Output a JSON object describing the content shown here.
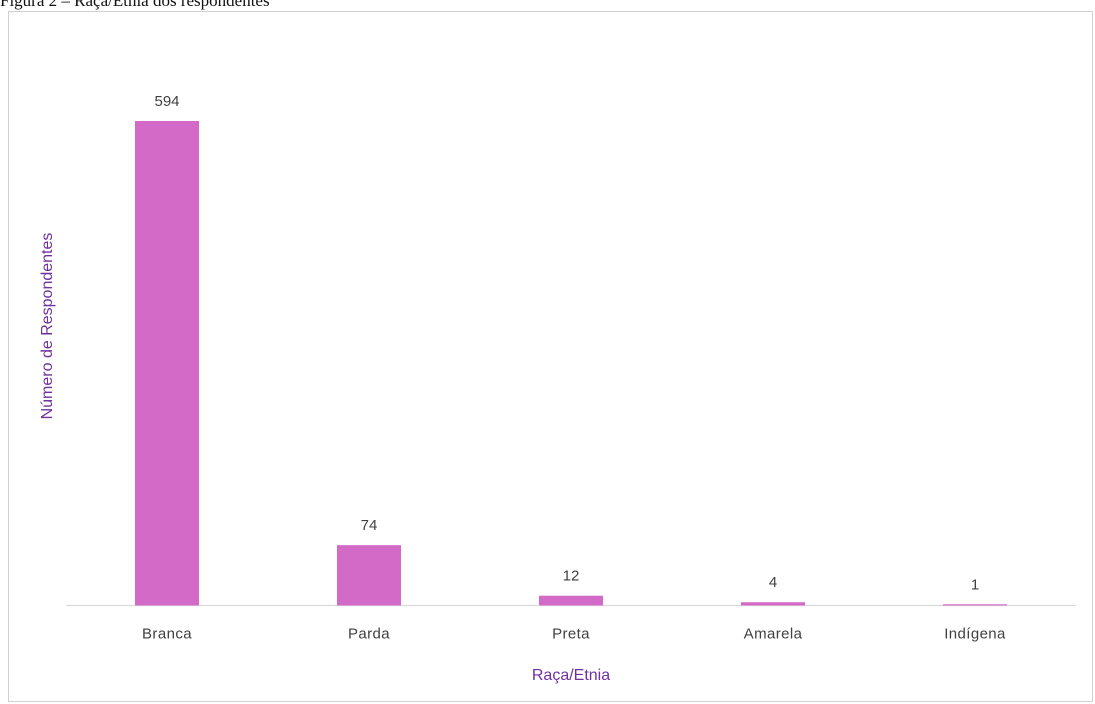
{
  "caption": "Figura 2 – Raça/Etnia dos respondentes",
  "chart_data": {
    "type": "bar",
    "categories": [
      "Branca",
      "Parda",
      "Preta",
      "Amarela",
      "Indígena"
    ],
    "values": [
      594,
      74,
      12,
      4,
      1
    ],
    "data_labels": [
      "594",
      "74",
      "12",
      "4",
      "1"
    ],
    "xlabel": "Raça/Etnia",
    "ylabel": "Número de Respondentes",
    "ylim": [
      0,
      594
    ],
    "grid": false,
    "legend": "none",
    "bar_color": "#d36ac8",
    "axis_title_color": "#7030a0"
  }
}
